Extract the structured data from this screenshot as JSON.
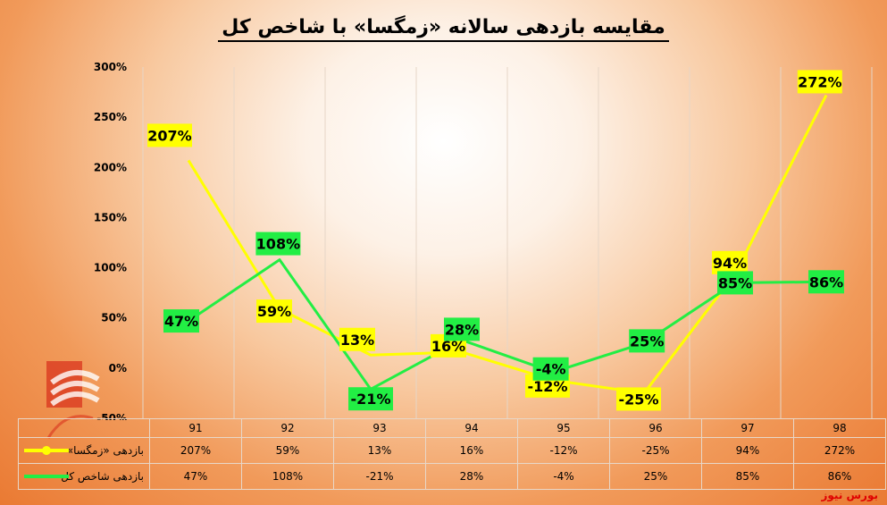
{
  "chart_data": {
    "type": "line",
    "title": "مقایسه بازدهی سالانه «زمگسا» با شاخص کل",
    "categories": [
      "91",
      "92",
      "93",
      "94",
      "95",
      "96",
      "97",
      "98"
    ],
    "series": [
      {
        "name": "بازدهی «زمگسا»",
        "color": "#ffff00",
        "values": [
          207,
          59,
          13,
          16,
          -12,
          -25,
          94,
          272
        ],
        "labels": [
          "207%",
          "59%",
          "13%",
          "16%",
          "-12%",
          "-25%",
          "94%",
          "272%"
        ]
      },
      {
        "name": "بازدهی شاخص کل",
        "color": "#22ee44",
        "values": [
          47,
          108,
          -21,
          28,
          -4,
          25,
          85,
          86
        ],
        "labels": [
          "47%",
          "108%",
          "-21%",
          "28%",
          "-4%",
          "25%",
          "85%",
          "86%"
        ]
      }
    ],
    "yaxis": {
      "min": -50,
      "max": 300,
      "step": 50,
      "ticks": [
        "-50%",
        "0%",
        "50%",
        "100%",
        "150%",
        "200%",
        "250%",
        "300%"
      ]
    },
    "grid": "vertical",
    "legend": "data table below the chart"
  },
  "brand": "بورس نیوز"
}
